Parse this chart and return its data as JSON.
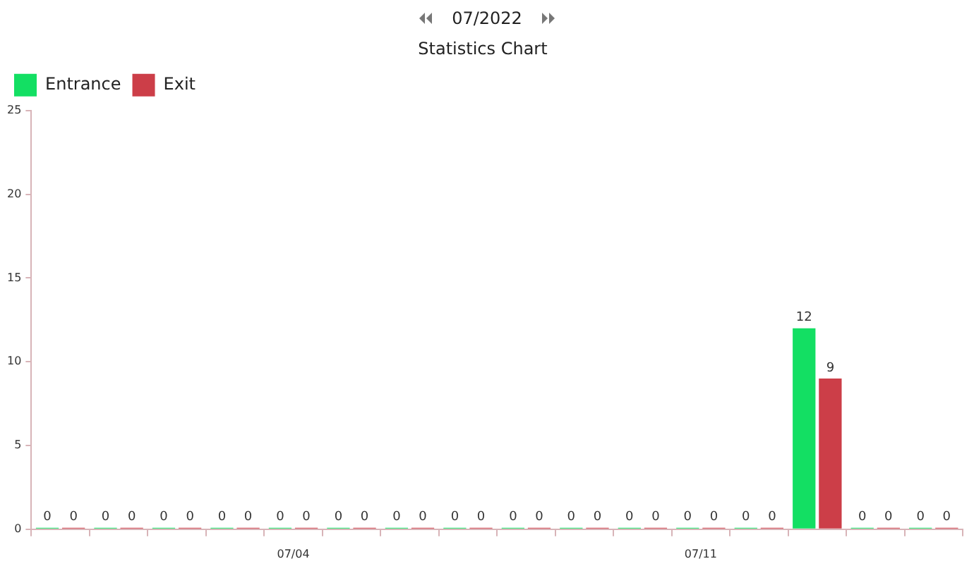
{
  "chart_data": {
    "type": "bar",
    "title": "Statistics Chart",
    "subtitle": "07/2022",
    "categories": [
      null,
      null,
      null,
      null,
      "07/04",
      null,
      null,
      null,
      null,
      null,
      null,
      "07/11",
      null,
      null,
      null,
      null
    ],
    "series": [
      {
        "name": "Entrance",
        "color": "#13df63",
        "values": [
          0,
          0,
          0,
          0,
          0,
          0,
          0,
          0,
          0,
          0,
          0,
          0,
          0,
          12,
          0,
          0
        ]
      },
      {
        "name": "Exit",
        "color": "#cc3e48",
        "values": [
          0,
          0,
          0,
          0,
          0,
          0,
          0,
          0,
          0,
          0,
          0,
          0,
          0,
          9,
          0,
          0
        ]
      }
    ],
    "ylim": [
      0,
      25
    ],
    "yticks": [
      0,
      5,
      10,
      15,
      20,
      25
    ],
    "grid": false,
    "legend": "top left",
    "data_labels": true
  }
}
